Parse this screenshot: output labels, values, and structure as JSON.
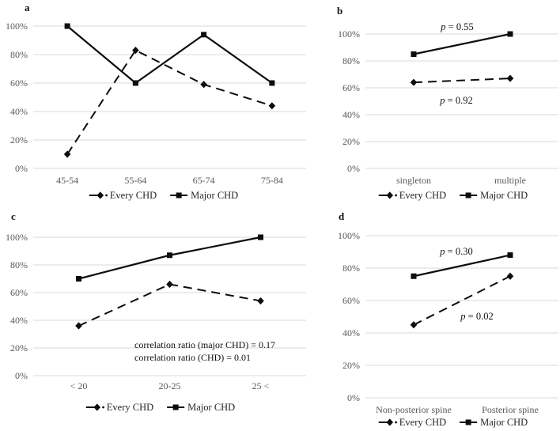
{
  "palette": {
    "background": "#ffffff",
    "series_line": "#0d0d0d",
    "grid": "#d9d9d9",
    "axis_text": "#595959",
    "annotation_text": "#111111",
    "legend_text": "#262626",
    "panel_letter": "#111111"
  },
  "chart_data": [
    {
      "id": "a",
      "panel_letter": "a",
      "type": "line",
      "categories": [
        "45-54",
        "55-64",
        "65-74",
        "75-84"
      ],
      "series": [
        {
          "name": "Every CHD",
          "line_style": "dashed",
          "marker": "diamond",
          "values": [
            10,
            83,
            59,
            44
          ]
        },
        {
          "name": "Major CHD",
          "line_style": "solid",
          "marker": "square",
          "values": [
            100,
            60,
            94,
            60
          ]
        }
      ],
      "ylim": [
        0,
        100
      ],
      "ytick_labels": [
        "0%",
        "20%",
        "40%",
        "60%",
        "80%",
        "100%"
      ],
      "grid": "horizontal",
      "legend_position": "bottom",
      "legend": [
        {
          "label": "Every CHD",
          "marker": "diamond",
          "line_style": "dashed"
        },
        {
          "label": "Major CHD",
          "marker": "square",
          "line_style": "solid"
        }
      ],
      "annotations": []
    },
    {
      "id": "b",
      "panel_letter": "b",
      "type": "line",
      "categories": [
        "singleton",
        "multiple"
      ],
      "series": [
        {
          "name": "Every CHD",
          "line_style": "dashed",
          "marker": "diamond",
          "values": [
            64,
            67
          ]
        },
        {
          "name": "Major CHD",
          "line_style": "solid",
          "marker": "square",
          "values": [
            85,
            100
          ]
        }
      ],
      "ylim": [
        0,
        100
      ],
      "ytick_labels": [
        "0%",
        "20%",
        "40%",
        "60%",
        "80%",
        "100%"
      ],
      "grid": "horizontal",
      "legend_position": "bottom",
      "legend": [
        {
          "label": "Every CHD",
          "marker": "diamond",
          "line_style": "dashed"
        },
        {
          "label": "Major CHD",
          "marker": "square",
          "line_style": "solid"
        }
      ],
      "annotations": [
        {
          "text": "p = 0.55",
          "italic_var": "p"
        },
        {
          "text": "p = 0.92",
          "italic_var": "p"
        }
      ]
    },
    {
      "id": "c",
      "panel_letter": "c",
      "type": "line",
      "categories": [
        "< 20",
        "20-25",
        "25 <"
      ],
      "series": [
        {
          "name": "Every CHD",
          "line_style": "dashed",
          "marker": "diamond",
          "values": [
            36,
            66,
            54
          ]
        },
        {
          "name": "Major CHD",
          "line_style": "solid",
          "marker": "square",
          "values": [
            70,
            87,
            100
          ]
        }
      ],
      "ylim": [
        0,
        100
      ],
      "ytick_labels": [
        "0%",
        "20%",
        "40%",
        "60%",
        "80%",
        "100%"
      ],
      "grid": "horizontal",
      "legend_position": "bottom",
      "legend": [
        {
          "label": "Every CHD",
          "marker": "diamond",
          "line_style": "dashed"
        },
        {
          "label": "Major CHD",
          "marker": "square",
          "line_style": "solid"
        }
      ],
      "annotations": [
        {
          "text": "correlation ratio (major CHD) = 0.17"
        },
        {
          "text": "correlation ratio (CHD) = 0.01"
        }
      ]
    },
    {
      "id": "d",
      "panel_letter": "d",
      "type": "line",
      "categories": [
        "Non-posterior spine",
        "Posterior spine"
      ],
      "series": [
        {
          "name": "Every CHD",
          "line_style": "dashed",
          "marker": "diamond",
          "values": [
            45,
            75
          ]
        },
        {
          "name": "Major CHD",
          "line_style": "solid",
          "marker": "square",
          "values": [
            75,
            88
          ]
        }
      ],
      "ylim": [
        0,
        100
      ],
      "ytick_labels": [
        "0%",
        "20%",
        "40%",
        "60%",
        "80%",
        "100%"
      ],
      "grid": "horizontal",
      "legend_position": "bottom",
      "legend": [
        {
          "label": "Every CHD",
          "marker": "diamond",
          "line_style": "dashed"
        },
        {
          "label": "Major CHD",
          "marker": "square",
          "line_style": "solid"
        }
      ],
      "annotations": [
        {
          "text": "p = 0.30",
          "italic_var": "p"
        },
        {
          "text": "p = 0.02",
          "italic_var": "p"
        }
      ]
    }
  ]
}
